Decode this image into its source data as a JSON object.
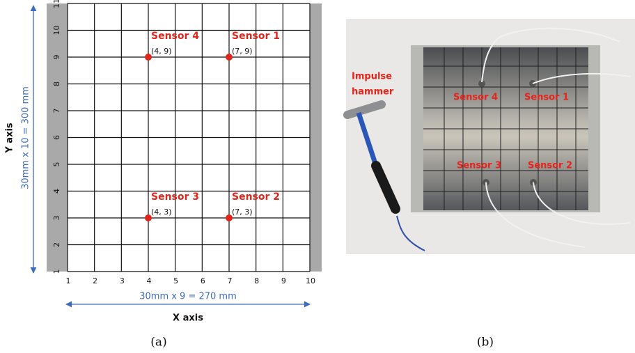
{
  "panel_a": {
    "x_ticks": [
      1,
      2,
      3,
      4,
      5,
      6,
      7,
      8,
      9,
      10
    ],
    "y_ticks": [
      1,
      2,
      3,
      4,
      5,
      6,
      7,
      8,
      9,
      10,
      11
    ],
    "sensors": [
      {
        "name": "Sensor 4",
        "x": 4,
        "y": 9,
        "label": "(4, 9)"
      },
      {
        "name": "Sensor 1",
        "x": 7,
        "y": 9,
        "label": "(7, 9)"
      },
      {
        "name": "Sensor 3",
        "x": 4,
        "y": 3,
        "label": "(4, 3)"
      },
      {
        "name": "Sensor 2",
        "x": 7,
        "y": 3,
        "label": "(7, 3)"
      }
    ],
    "x_dimension": "30mm x 9 = 270 mm",
    "y_dimension": "30mm x 10 = 300 mm",
    "x_axis_label": "X axis",
    "y_axis_label": "Y axis",
    "caption": "(a)"
  },
  "panel_b": {
    "hammer_label": [
      "Impulse",
      "hammer"
    ],
    "sensor_labels": [
      "Sensor 4",
      "Sensor 1",
      "Sensor 3",
      "Sensor 2"
    ],
    "caption": "(b)"
  }
}
